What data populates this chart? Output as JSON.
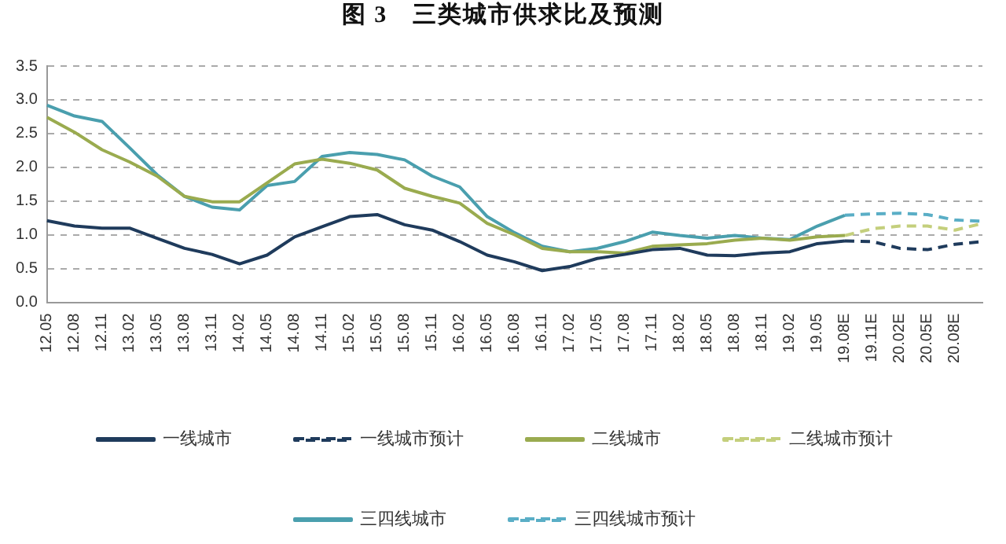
{
  "chart_data": {
    "type": "line",
    "title": "图 3　三类城市供求比及预测",
    "categories": [
      "12.05",
      "12.08",
      "12.11",
      "13.02",
      "13.05",
      "13.08",
      "13.11",
      "14.02",
      "14.05",
      "14.08",
      "14.11",
      "15.02",
      "15.05",
      "15.08",
      "15.11",
      "16.02",
      "16.05",
      "16.08",
      "16.11",
      "17.02",
      "17.05",
      "17.08",
      "17.11",
      "18.02",
      "18.05",
      "18.08",
      "18.11",
      "19.02",
      "19.05",
      "19.08E",
      "19.11E",
      "20.02E",
      "20.05E",
      "20.08E",
      null
    ],
    "series": [
      {
        "name": "一线城市",
        "color": "#1f3b5c",
        "line_style": "solid",
        "values": [
          1.21,
          1.13,
          1.1,
          1.1,
          0.95,
          0.8,
          0.71,
          0.57,
          0.7,
          0.97,
          1.12,
          1.27,
          1.3,
          1.15,
          1.07,
          0.9,
          0.7,
          0.6,
          0.47,
          0.53,
          0.65,
          0.71,
          0.78,
          0.8,
          0.7,
          0.69,
          0.73,
          0.75,
          0.87,
          0.91,
          null,
          null,
          null,
          null,
          null
        ]
      },
      {
        "name": "一线城市预计",
        "color": "#1f3b5c",
        "line_style": "dashed",
        "values": [
          null,
          null,
          null,
          null,
          null,
          null,
          null,
          null,
          null,
          null,
          null,
          null,
          null,
          null,
          null,
          null,
          null,
          null,
          null,
          null,
          null,
          null,
          null,
          null,
          null,
          null,
          null,
          null,
          null,
          0.91,
          0.9,
          0.8,
          0.78,
          0.86,
          0.9
        ]
      },
      {
        "name": "二线城市",
        "color": "#9aab4f",
        "line_style": "solid",
        "values": [
          2.74,
          2.52,
          2.26,
          2.08,
          1.87,
          1.57,
          1.49,
          1.49,
          1.77,
          2.05,
          2.12,
          2.06,
          1.96,
          1.69,
          1.57,
          1.47,
          1.17,
          1.0,
          0.8,
          0.75,
          0.75,
          0.73,
          0.83,
          0.85,
          0.87,
          0.92,
          0.95,
          0.92,
          0.97,
          0.99,
          null,
          null,
          null,
          null,
          null
        ]
      },
      {
        "name": "二线城市预计",
        "color": "#c4cf7c",
        "line_style": "dashed",
        "values": [
          null,
          null,
          null,
          null,
          null,
          null,
          null,
          null,
          null,
          null,
          null,
          null,
          null,
          null,
          null,
          null,
          null,
          null,
          null,
          null,
          null,
          null,
          null,
          null,
          null,
          null,
          null,
          null,
          null,
          0.99,
          1.09,
          1.13,
          1.13,
          1.07,
          1.17
        ]
      },
      {
        "name": "三四线城市",
        "color": "#4a9fae",
        "line_style": "solid",
        "values": [
          2.92,
          2.76,
          2.68,
          2.29,
          1.89,
          1.57,
          1.41,
          1.37,
          1.73,
          1.79,
          2.16,
          2.22,
          2.19,
          2.11,
          1.87,
          1.71,
          1.27,
          1.03,
          0.83,
          0.75,
          0.8,
          0.9,
          1.04,
          0.99,
          0.95,
          0.99,
          0.95,
          0.93,
          1.13,
          1.29,
          null,
          null,
          null,
          null,
          null
        ]
      },
      {
        "name": "三四线城市预计",
        "color": "#5aaec6",
        "line_style": "dashed",
        "values": [
          null,
          null,
          null,
          null,
          null,
          null,
          null,
          null,
          null,
          null,
          null,
          null,
          null,
          null,
          null,
          null,
          null,
          null,
          null,
          null,
          null,
          null,
          null,
          null,
          null,
          null,
          null,
          null,
          null,
          1.29,
          1.31,
          1.32,
          1.3,
          1.22,
          1.2
        ]
      }
    ],
    "ylim": [
      0,
      3.5
    ],
    "yticks": [
      {
        "value": 0,
        "label": "0.0"
      },
      {
        "value": 0.5,
        "label": "0.5"
      },
      {
        "value": 1,
        "label": "1.0"
      },
      {
        "value": 1.5,
        "label": "1.5"
      },
      {
        "value": 2,
        "label": "2.0"
      },
      {
        "value": 2.5,
        "label": "2.5"
      },
      {
        "value": 3,
        "label": "3.0"
      },
      {
        "value": 3.5,
        "label": "3.5"
      }
    ],
    "grid": "y",
    "legend": "bottom",
    "marker": "none"
  }
}
